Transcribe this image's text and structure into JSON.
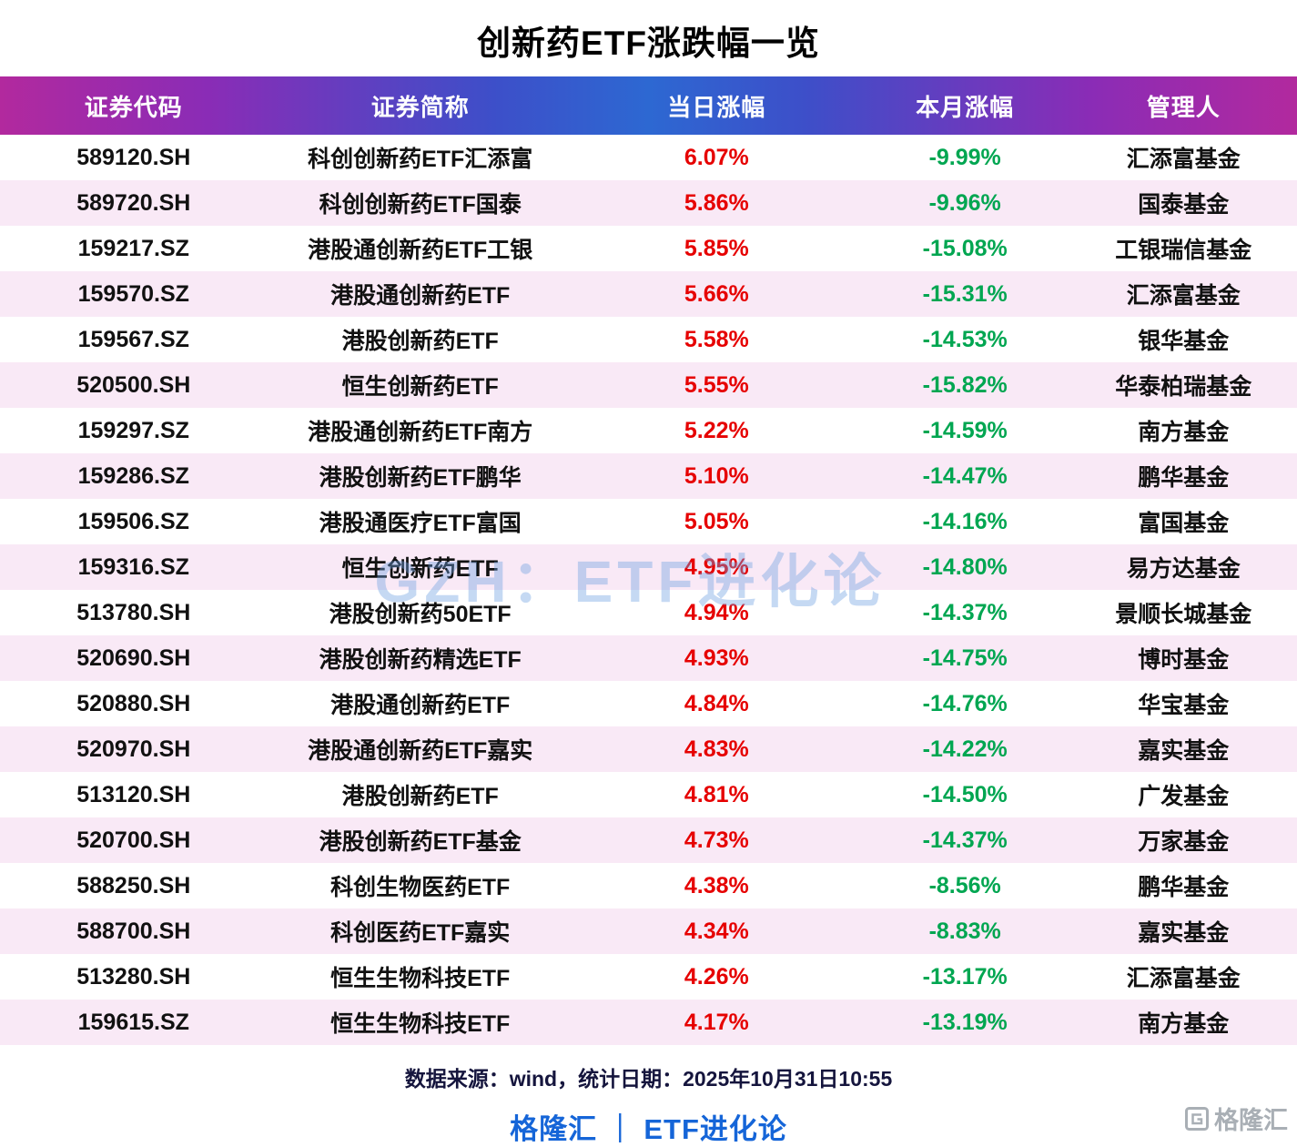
{
  "title": "创新药ETF涨跌幅一览",
  "watermark": "GZH：ETF进化论",
  "table": {
    "headers": [
      "证券代码",
      "证券简称",
      "当日涨幅",
      "本月涨幅",
      "管理人"
    ],
    "rows": [
      {
        "code": "589120.SH",
        "name": "科创创新药ETF汇添富",
        "daily": "6.07%",
        "monthly": "-9.99%",
        "manager": "汇添富基金"
      },
      {
        "code": "589720.SH",
        "name": "科创创新药ETF国泰",
        "daily": "5.86%",
        "monthly": "-9.96%",
        "manager": "国泰基金"
      },
      {
        "code": "159217.SZ",
        "name": "港股通创新药ETF工银",
        "daily": "5.85%",
        "monthly": "-15.08%",
        "manager": "工银瑞信基金"
      },
      {
        "code": "159570.SZ",
        "name": "港股通创新药ETF",
        "daily": "5.66%",
        "monthly": "-15.31%",
        "manager": "汇添富基金"
      },
      {
        "code": "159567.SZ",
        "name": "港股创新药ETF",
        "daily": "5.58%",
        "monthly": "-14.53%",
        "manager": "银华基金"
      },
      {
        "code": "520500.SH",
        "name": "恒生创新药ETF",
        "daily": "5.55%",
        "monthly": "-15.82%",
        "manager": "华泰柏瑞基金"
      },
      {
        "code": "159297.SZ",
        "name": "港股通创新药ETF南方",
        "daily": "5.22%",
        "monthly": "-14.59%",
        "manager": "南方基金"
      },
      {
        "code": "159286.SZ",
        "name": "港股创新药ETF鹏华",
        "daily": "5.10%",
        "monthly": "-14.47%",
        "manager": "鹏华基金"
      },
      {
        "code": "159506.SZ",
        "name": "港股通医疗ETF富国",
        "daily": "5.05%",
        "monthly": "-14.16%",
        "manager": "富国基金"
      },
      {
        "code": "159316.SZ",
        "name": "恒生创新药ETF",
        "daily": "4.95%",
        "monthly": "-14.80%",
        "manager": "易方达基金"
      },
      {
        "code": "513780.SH",
        "name": "港股创新药50ETF",
        "daily": "4.94%",
        "monthly": "-14.37%",
        "manager": "景顺长城基金"
      },
      {
        "code": "520690.SH",
        "name": "港股创新药精选ETF",
        "daily": "4.93%",
        "monthly": "-14.75%",
        "manager": "博时基金"
      },
      {
        "code": "520880.SH",
        "name": "港股通创新药ETF",
        "daily": "4.84%",
        "monthly": "-14.76%",
        "manager": "华宝基金"
      },
      {
        "code": "520970.SH",
        "name": "港股通创新药ETF嘉实",
        "daily": "4.83%",
        "monthly": "-14.22%",
        "manager": "嘉实基金"
      },
      {
        "code": "513120.SH",
        "name": "港股创新药ETF",
        "daily": "4.81%",
        "monthly": "-14.50%",
        "manager": "广发基金"
      },
      {
        "code": "520700.SH",
        "name": "港股创新药ETF基金",
        "daily": "4.73%",
        "monthly": "-14.37%",
        "manager": "万家基金"
      },
      {
        "code": "588250.SH",
        "name": "科创生物医药ETF",
        "daily": "4.38%",
        "monthly": "-8.56%",
        "manager": "鹏华基金"
      },
      {
        "code": "588700.SH",
        "name": "科创医药ETF嘉实",
        "daily": "4.34%",
        "monthly": "-8.83%",
        "manager": "嘉实基金"
      },
      {
        "code": "513280.SH",
        "name": "恒生生物科技ETF",
        "daily": "4.26%",
        "monthly": "-13.17%",
        "manager": "汇添富基金"
      },
      {
        "code": "159615.SZ",
        "name": "恒生生物科技ETF",
        "daily": "4.17%",
        "monthly": "-13.19%",
        "manager": "南方基金"
      }
    ]
  },
  "chart_data": {
    "type": "table",
    "title": "创新药ETF涨跌幅一览",
    "columns": [
      "证券代码",
      "证券简称",
      "当日涨幅",
      "本月涨幅",
      "管理人"
    ],
    "categories": [
      "589120.SH",
      "589720.SH",
      "159217.SZ",
      "159570.SZ",
      "159567.SZ",
      "520500.SH",
      "159297.SZ",
      "159286.SZ",
      "159506.SZ",
      "159316.SZ",
      "513780.SH",
      "520690.SH",
      "520880.SH",
      "520970.SH",
      "513120.SH",
      "520700.SH",
      "588250.SH",
      "588700.SH",
      "513280.SH",
      "159615.SZ"
    ],
    "series": [
      {
        "name": "当日涨幅(%)",
        "values": [
          6.07,
          5.86,
          5.85,
          5.66,
          5.58,
          5.55,
          5.22,
          5.1,
          5.05,
          4.95,
          4.94,
          4.93,
          4.84,
          4.83,
          4.81,
          4.73,
          4.38,
          4.34,
          4.26,
          4.17
        ]
      },
      {
        "name": "本月涨幅(%)",
        "values": [
          -9.99,
          -9.96,
          -15.08,
          -15.31,
          -14.53,
          -15.82,
          -14.59,
          -14.47,
          -14.16,
          -14.8,
          -14.37,
          -14.75,
          -14.76,
          -14.22,
          -14.5,
          -14.37,
          -8.56,
          -8.83,
          -13.17,
          -13.19
        ]
      }
    ]
  },
  "footer": {
    "source": "数据来源：wind，统计日期：2025年10月31日10:55",
    "brand": "格隆汇 ｜ ETF进化论",
    "logo": "格隆汇"
  },
  "colors": {
    "daily_change": "#e60000",
    "monthly_change": "#00a651",
    "brand_blue": "#1565d8",
    "header_gradient_left": "#b2299e",
    "header_gradient_mid": "#2d68d2",
    "alt_row": "#f9e9f6"
  }
}
